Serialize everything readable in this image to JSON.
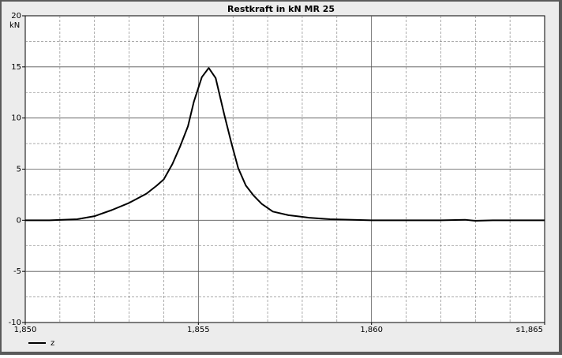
{
  "chart_data": {
    "type": "line",
    "title": "Restkraft in kN MR 25",
    "y_unit": "kN",
    "x_unit": "s",
    "x": [
      1.85,
      1.8507,
      1.8515,
      1.852,
      1.8525,
      1.853,
      1.8535,
      1.8538,
      1.854,
      1.85425,
      1.85447,
      1.8547,
      1.85487,
      1.8551,
      1.8553,
      1.8555,
      1.85575,
      1.85595,
      1.85615,
      1.85637,
      1.8566,
      1.85683,
      1.85715,
      1.8576,
      1.8582,
      1.8588,
      1.86,
      1.861,
      1.862,
      1.8627,
      1.863,
      1.8635,
      1.864,
      1.865
    ],
    "series": [
      {
        "name": "z",
        "color": "#000000",
        "values": [
          0,
          0,
          0.1,
          0.4,
          1.0,
          1.7,
          2.6,
          3.4,
          4.0,
          5.5,
          7.2,
          9.2,
          11.6,
          14.0,
          14.9,
          13.9,
          10.3,
          7.6,
          5.1,
          3.4,
          2.4,
          1.6,
          0.85,
          0.5,
          0.25,
          0.1,
          0,
          0,
          0,
          0.05,
          -0.05,
          0,
          0,
          0
        ]
      }
    ],
    "xlim": [
      1.85,
      1.865
    ],
    "xticks": [
      {
        "value": 1.85,
        "label": "1,850"
      },
      {
        "value": 1.855,
        "label": "1,855"
      },
      {
        "value": 1.86,
        "label": "1,860"
      },
      {
        "value": 1.865,
        "label": "1,865"
      }
    ],
    "ylim": [
      -10,
      20
    ],
    "yticks": [
      -10,
      -5,
      0,
      5,
      10,
      15,
      20
    ],
    "grid": true
  }
}
